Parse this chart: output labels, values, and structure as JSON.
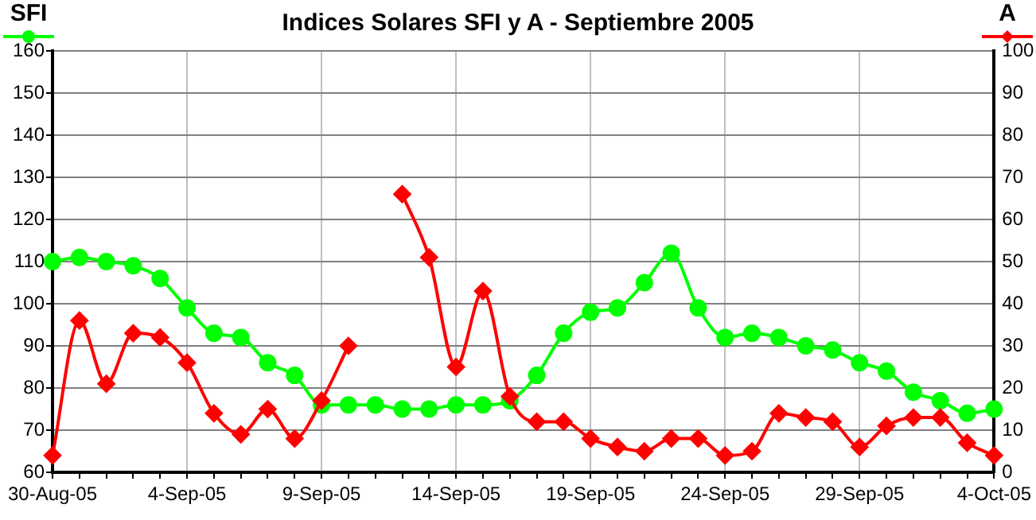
{
  "chart_data": {
    "type": "line",
    "title": "Indices Solares SFI y A - Septiembre 2005",
    "categories": [
      "30-Aug-05",
      null,
      null,
      null,
      null,
      "4-Sep-05",
      null,
      null,
      null,
      null,
      "9-Sep-05",
      null,
      null,
      null,
      null,
      "14-Sep-05",
      null,
      null,
      null,
      null,
      "19-Sep-05",
      null,
      null,
      null,
      null,
      "24-Sep-05",
      null,
      null,
      null,
      null,
      "29-Sep-05",
      null,
      null,
      null,
      null,
      "4-Oct-05"
    ],
    "series": [
      {
        "color": "#00ff00",
        "marker": "circle",
        "axis": "y",
        "values": [
          110,
          111,
          110,
          109,
          106,
          99,
          93,
          92,
          86,
          83,
          76,
          76,
          76,
          75,
          75,
          76,
          76,
          77,
          83,
          93,
          98,
          99,
          105,
          112,
          99,
          92,
          93,
          92,
          90,
          89,
          86,
          84,
          79,
          77,
          74,
          75
        ]
      },
      {
        "color": "#ff0000",
        "marker": "diamond",
        "axis": "y2",
        "values": [
          4,
          36,
          21,
          33,
          32,
          26,
          14,
          9,
          15,
          8,
          17,
          30,
          null,
          66,
          51,
          25,
          43,
          18,
          12,
          12,
          8,
          6,
          5,
          8,
          8,
          4,
          5,
          14,
          13,
          12,
          6,
          11,
          13,
          13,
          7,
          4
        ]
      }
    ],
    "ylim": [
      60,
      160
    ],
    "yticks": [
      60,
      70,
      80,
      90,
      100,
      110,
      120,
      130,
      140,
      150,
      160
    ],
    "y2lim": [
      0,
      100
    ],
    "y2ticks": [
      0,
      10,
      20,
      30,
      40,
      50,
      60,
      70,
      80,
      90,
      100
    ],
    "ylabel": "SFI",
    "y2label": "A",
    "grid": true,
    "line_style": "solid"
  }
}
